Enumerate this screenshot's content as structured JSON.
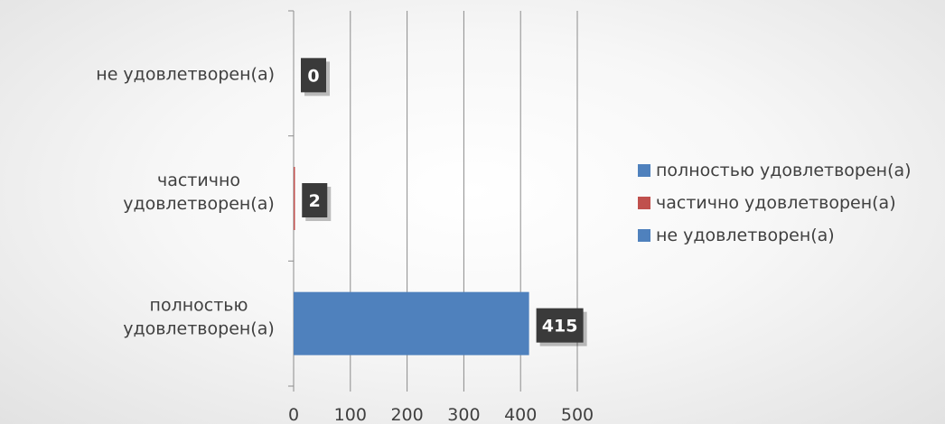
{
  "chart_data": {
    "type": "bar",
    "orientation": "horizontal",
    "categories": [
      "не удовлетворен(а)",
      "частично удовлетворен(а)",
      "полностью удовлетворен(а)"
    ],
    "values": [
      0,
      2,
      415
    ],
    "bar_colors": [
      "#4f81bd",
      "#c0504d",
      "#4f81bd"
    ],
    "xlim": [
      0,
      500
    ],
    "xticks": [
      "0",
      "100",
      "200",
      "300",
      "400",
      "500"
    ],
    "grid": true,
    "data_labels": [
      "0",
      "2",
      "415"
    ],
    "legend": {
      "placement": "right",
      "entries": [
        {
          "label": "полностью удовлетворен(а)",
          "color": "#4f81bd"
        },
        {
          "label": "частично удовлетворен(а)",
          "color": "#c0504d"
        },
        {
          "label": "не удовлетворен(а)",
          "color": "#4f81bd"
        }
      ]
    }
  }
}
